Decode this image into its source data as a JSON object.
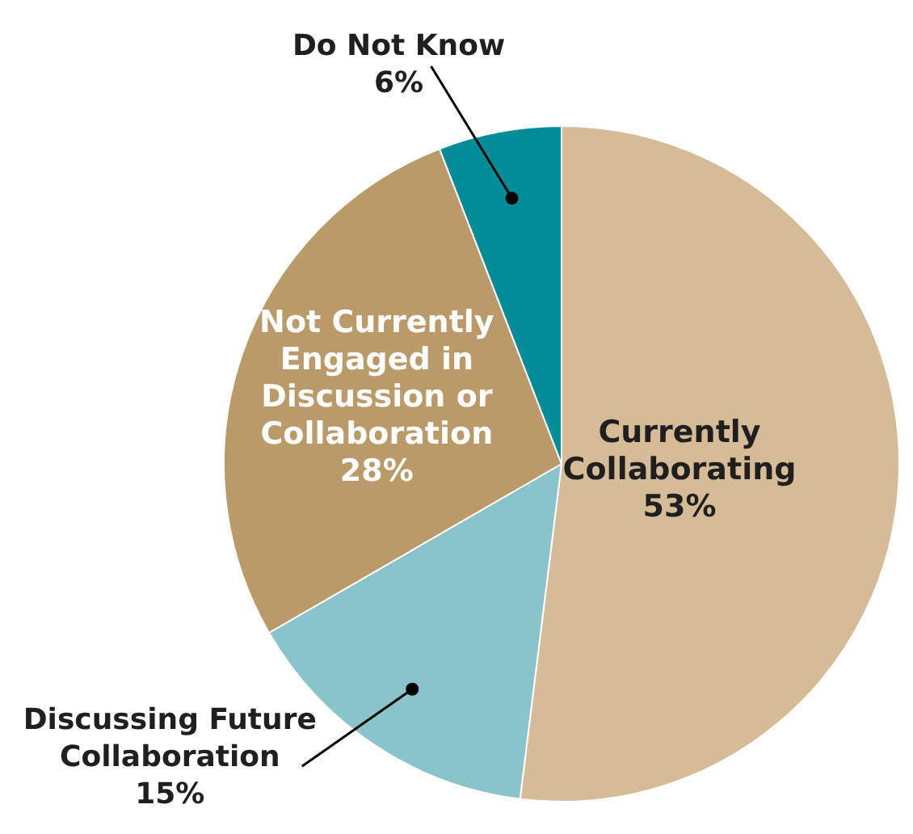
{
  "chart_data": {
    "type": "pie",
    "categories": [
      "Currently Collaborating",
      "Discussing Future Collaboration",
      "Not Currently Engaged in Discussion or Collaboration",
      "Do Not Know"
    ],
    "values": [
      53,
      15,
      28,
      6
    ],
    "colors": [
      "#d5bb96",
      "#89c4cb",
      "#bb9a69",
      "#008c99"
    ],
    "value_labels": [
      "53%",
      "15%",
      "28%",
      "6%"
    ],
    "legend": false
  }
}
